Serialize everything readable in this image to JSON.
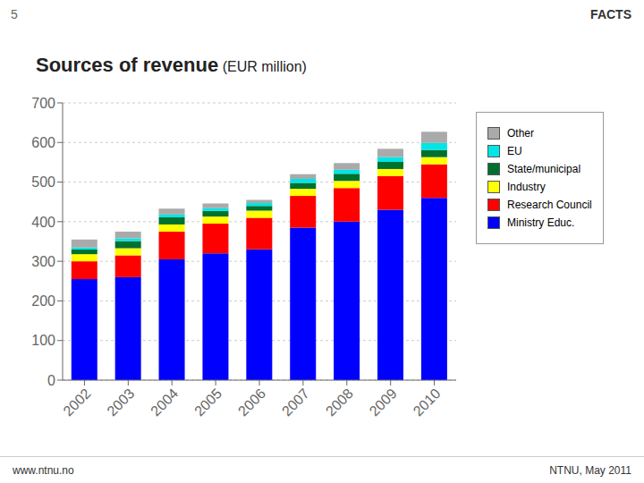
{
  "chart_data": {
    "type": "bar",
    "stacked": true,
    "title": "Sources of revenue",
    "subtitle": "(EUR million)",
    "categories": [
      "2002",
      "2003",
      "2004",
      "2005",
      "2006",
      "2007",
      "2008",
      "2009",
      "2010"
    ],
    "series": [
      {
        "name": "Ministry Educ.",
        "color": "#0000FF",
        "values": [
          255,
          260,
          305,
          320,
          330,
          385,
          400,
          430,
          460
        ]
      },
      {
        "name": "Research Council",
        "color": "#FF0000",
        "values": [
          45,
          55,
          70,
          75,
          80,
          80,
          85,
          85,
          85
        ]
      },
      {
        "name": "Industry",
        "color": "#FFFF00",
        "values": [
          18,
          18,
          18,
          18,
          18,
          18,
          18,
          18,
          18
        ]
      },
      {
        "name": "State/municipal",
        "color": "#007030",
        "values": [
          12,
          18,
          18,
          14,
          12,
          15,
          18,
          18,
          18
        ]
      },
      {
        "name": "EU",
        "color": "#00E5E5",
        "values": [
          5,
          7,
          7,
          7,
          7,
          10,
          10,
          12,
          18
        ]
      },
      {
        "name": "Other",
        "color": "#AAAAAA",
        "values": [
          20,
          17,
          15,
          12,
          8,
          12,
          17,
          21,
          28
        ]
      }
    ],
    "ylim": [
      0,
      700
    ],
    "yticks": [
      0,
      100,
      200,
      300,
      400,
      500,
      600,
      700
    ],
    "grid": true,
    "legend": "right",
    "annotations": [
      "5",
      "FACTS",
      "www.ntnu.no",
      "NTNU, May 2011"
    ]
  }
}
